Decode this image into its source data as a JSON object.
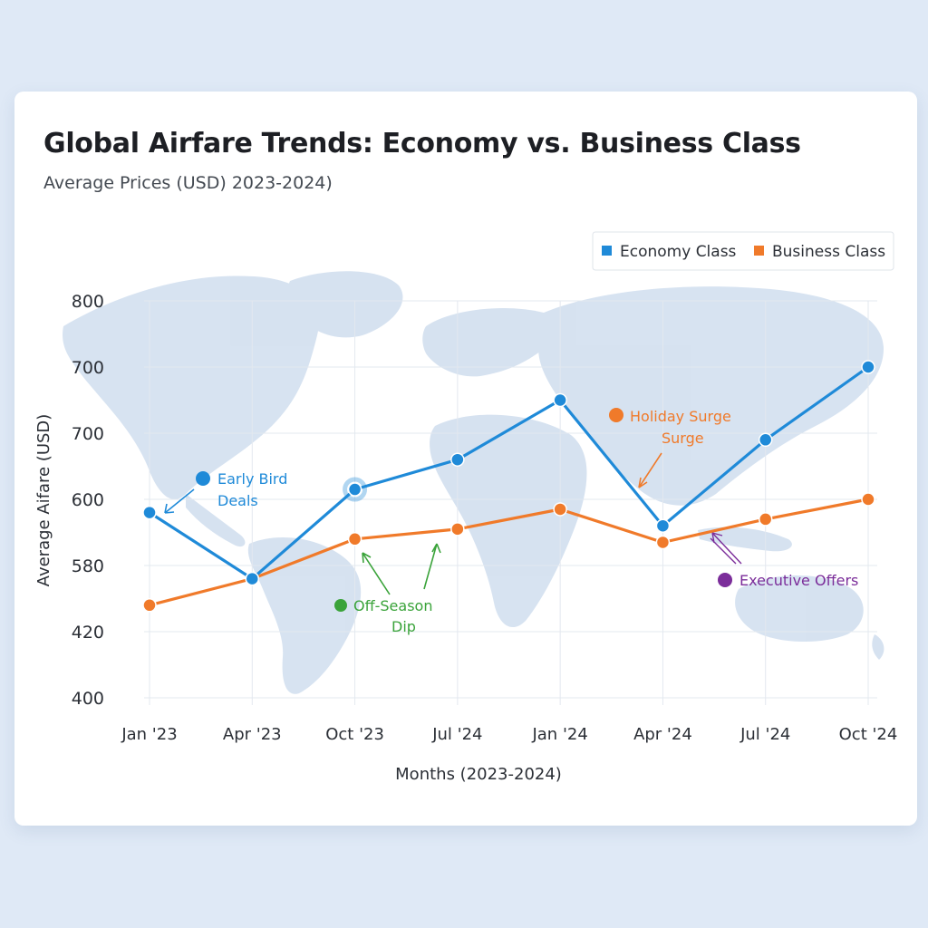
{
  "title": "Global Airfare Trends: Economy vs. Business Class",
  "subtitle": "Average Prices (USD) 2023-2024)",
  "colors": {
    "economy": "#1f8ad8",
    "business": "#f07a2a",
    "green": "#3aa33a",
    "purple": "#7b2d9a",
    "grid": "#e3e8ef",
    "map": "#c9d9ec"
  },
  "chart_data": {
    "type": "line",
    "title": "Global Airfare Trends: Economy vs. Business Class",
    "subtitle": "Average Prices (USD) 2023-2024)",
    "xlabel": "Months (2023-2024)",
    "ylabel": "Average Aifare (USD)",
    "categories": [
      "Jan '23",
      "Apr '23",
      "Oct '23",
      "Jul '24",
      "Jan '24",
      "Apr '24",
      "Jul '24",
      "Oct '24"
    ],
    "y_tick_labels": [
      "400",
      "420",
      "580",
      "600",
      "700",
      "700",
      "800"
    ],
    "y_note": "Tick labels are printed non-uniformly; values below are positions on the printed 7-tick scale (0 = bottom tick 400, 6 = top tick 800).",
    "ylim": [
      0,
      6
    ],
    "grid": true,
    "legend": "top-right",
    "series": [
      {
        "name": "Economy Class",
        "color": "#1f8ad8",
        "values": [
          2.8,
          1.8,
          3.15,
          3.6,
          4.5,
          2.6,
          3.9,
          5.0
        ]
      },
      {
        "name": "Business Class",
        "color": "#f07a2a",
        "values": [
          1.4,
          1.8,
          2.4,
          2.55,
          2.85,
          2.35,
          2.7,
          3.0
        ]
      }
    ],
    "annotations": [
      {
        "text": [
          "Early Bird",
          "Deals"
        ],
        "color": "#1f8ad8"
      },
      {
        "text": [
          "Off-Season",
          "Dip"
        ],
        "color": "#3aa33a"
      },
      {
        "text": [
          "Holiday Surge",
          "Surge"
        ],
        "color": "#f07a2a"
      },
      {
        "text": [
          "Executive Offers"
        ],
        "color": "#7b2d9a"
      }
    ]
  }
}
